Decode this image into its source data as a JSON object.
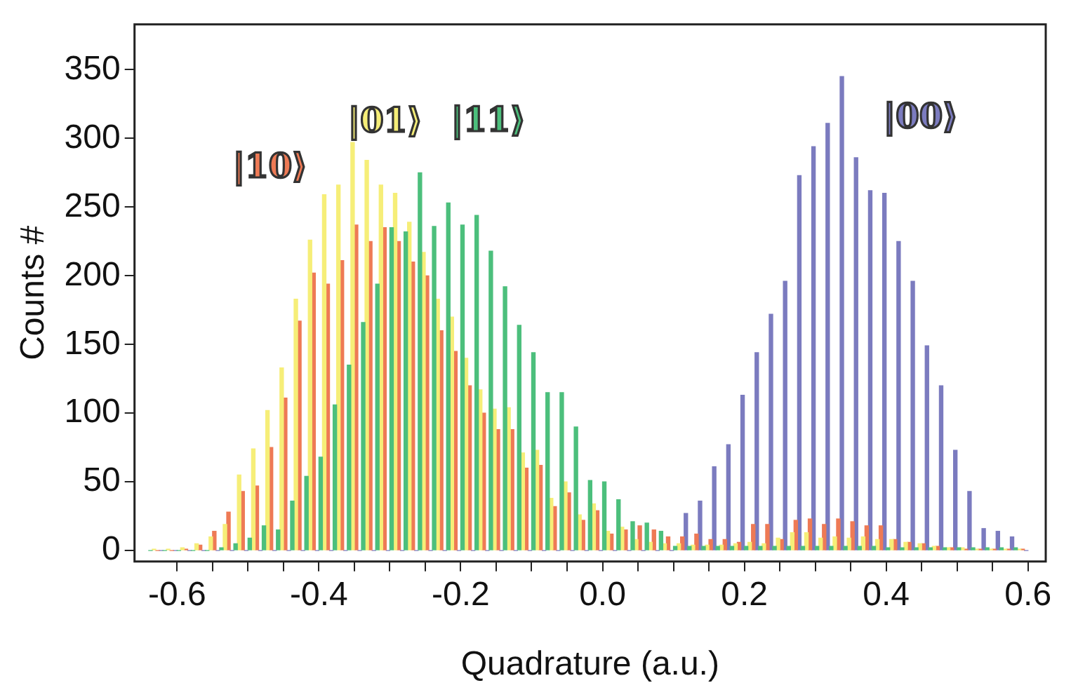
{
  "chart_data": {
    "type": "histogram",
    "xlabel": "Quadrature (a.u.)",
    "ylabel": "Counts #",
    "bins": [
      -0.64,
      -0.62,
      -0.6,
      -0.58,
      -0.56,
      -0.54,
      -0.52,
      -0.5,
      -0.48,
      -0.46,
      -0.44,
      -0.42,
      -0.4,
      -0.38,
      -0.36,
      -0.34,
      -0.32,
      -0.3,
      -0.28,
      -0.26,
      -0.24,
      -0.22,
      -0.2,
      -0.18,
      -0.16,
      -0.14,
      -0.12,
      -0.1,
      -0.08,
      -0.06,
      -0.04,
      -0.02,
      0,
      0.02,
      0.04,
      0.06,
      0.08,
      0.1,
      0.12,
      0.14,
      0.16,
      0.18,
      0.2,
      0.22,
      0.24,
      0.26,
      0.28,
      0.3,
      0.32,
      0.34,
      0.36,
      0.38,
      0.4,
      0.42,
      0.44,
      0.46,
      0.48,
      0.5,
      0.52,
      0.54,
      0.56,
      0.58,
      0.6
    ],
    "series": [
      {
        "name": "|00⟩",
        "color": "#7b7bbf",
        "values": [
          0,
          0,
          0,
          0,
          0,
          0,
          0,
          0,
          0,
          0,
          0,
          0,
          0,
          0,
          0,
          0,
          0,
          0,
          0,
          0,
          0,
          0,
          0,
          0,
          0,
          0,
          0,
          0,
          0,
          0,
          0,
          0,
          0,
          0,
          0,
          0,
          0,
          27,
          36,
          61,
          77,
          113,
          144,
          172,
          196,
          273,
          294,
          311,
          345,
          286,
          262,
          260,
          225,
          196,
          149,
          120,
          73,
          43,
          16,
          14,
          10,
          0
        ]
      },
      {
        "name": "|10⟩",
        "color": "#ee7a55",
        "values": [
          0,
          0,
          1,
          4,
          14,
          28,
          43,
          47,
          75,
          111,
          167,
          202,
          194,
          211,
          237,
          225,
          235,
          225,
          210,
          200,
          160,
          145,
          120,
          100,
          88,
          88,
          60,
          62,
          32,
          42,
          22,
          29,
          12,
          15,
          18,
          15,
          10,
          10,
          12,
          8,
          8,
          6,
          19,
          19,
          8,
          22,
          23,
          19,
          23,
          21,
          18,
          18,
          8,
          6,
          5,
          3,
          2,
          1,
          1,
          1,
          1,
          1
        ]
      },
      {
        "name": "|01⟩",
        "color": "#f6ee78",
        "values": [
          1,
          1,
          2,
          5,
          10,
          19,
          55,
          74,
          102,
          133,
          183,
          226,
          259,
          266,
          297,
          284,
          266,
          260,
          239,
          217,
          183,
          170,
          140,
          117,
          103,
          104,
          71,
          73,
          38,
          50,
          26,
          34,
          14,
          17,
          8,
          6,
          5,
          5,
          4,
          4,
          4,
          5,
          6,
          5,
          9,
          13,
          13,
          9,
          10,
          9,
          10,
          8,
          8,
          6,
          5,
          3,
          2,
          2,
          1,
          1,
          1,
          1
        ]
      },
      {
        "name": "|11⟩",
        "color": "#4cbf7c",
        "values": [
          0,
          0,
          0,
          0,
          0,
          2,
          5,
          9,
          18,
          15,
          36,
          54,
          68,
          106,
          135,
          166,
          194,
          235,
          232,
          275,
          236,
          253,
          237,
          244,
          218,
          192,
          164,
          144,
          115,
          115,
          90,
          51,
          50,
          37,
          21,
          20,
          14,
          3,
          3,
          3,
          3,
          3,
          3,
          3,
          3,
          3,
          3,
          3,
          3,
          3,
          3,
          3,
          2,
          2,
          2,
          2,
          2,
          2,
          2,
          2,
          2,
          2
        ]
      }
    ],
    "xlim": [
      -0.66,
      0.625
    ],
    "xticks": [
      {
        "value": -0.6,
        "label": "-0.6"
      },
      {
        "value": -0.55,
        "label": null
      },
      {
        "value": -0.5,
        "label": null
      },
      {
        "value": -0.45,
        "label": null
      },
      {
        "value": -0.4,
        "label": "-0.4"
      },
      {
        "value": -0.35,
        "label": null
      },
      {
        "value": -0.3,
        "label": null
      },
      {
        "value": -0.25,
        "label": null
      },
      {
        "value": -0.2,
        "label": "-0.2"
      },
      {
        "value": -0.15,
        "label": null
      },
      {
        "value": -0.1,
        "label": null
      },
      {
        "value": -0.05,
        "label": null
      },
      {
        "value": 0,
        "label": "0.0"
      },
      {
        "value": 0.05,
        "label": null
      },
      {
        "value": 0.1,
        "label": null
      },
      {
        "value": 0.15,
        "label": null
      },
      {
        "value": 0.2,
        "label": "0.2"
      },
      {
        "value": 0.25,
        "label": null
      },
      {
        "value": 0.3,
        "label": null
      },
      {
        "value": 0.35,
        "label": null
      },
      {
        "value": 0.4,
        "label": "0.4"
      },
      {
        "value": 0.45,
        "label": null
      },
      {
        "value": 0.5,
        "label": null
      },
      {
        "value": 0.55,
        "label": null
      },
      {
        "value": 0.6,
        "label": "0.6"
      }
    ],
    "ylim": [
      -8,
      383
    ],
    "yticks": [
      0,
      50,
      100,
      150,
      200,
      250,
      300,
      350
    ],
    "grid": false,
    "legend": false
  }
}
